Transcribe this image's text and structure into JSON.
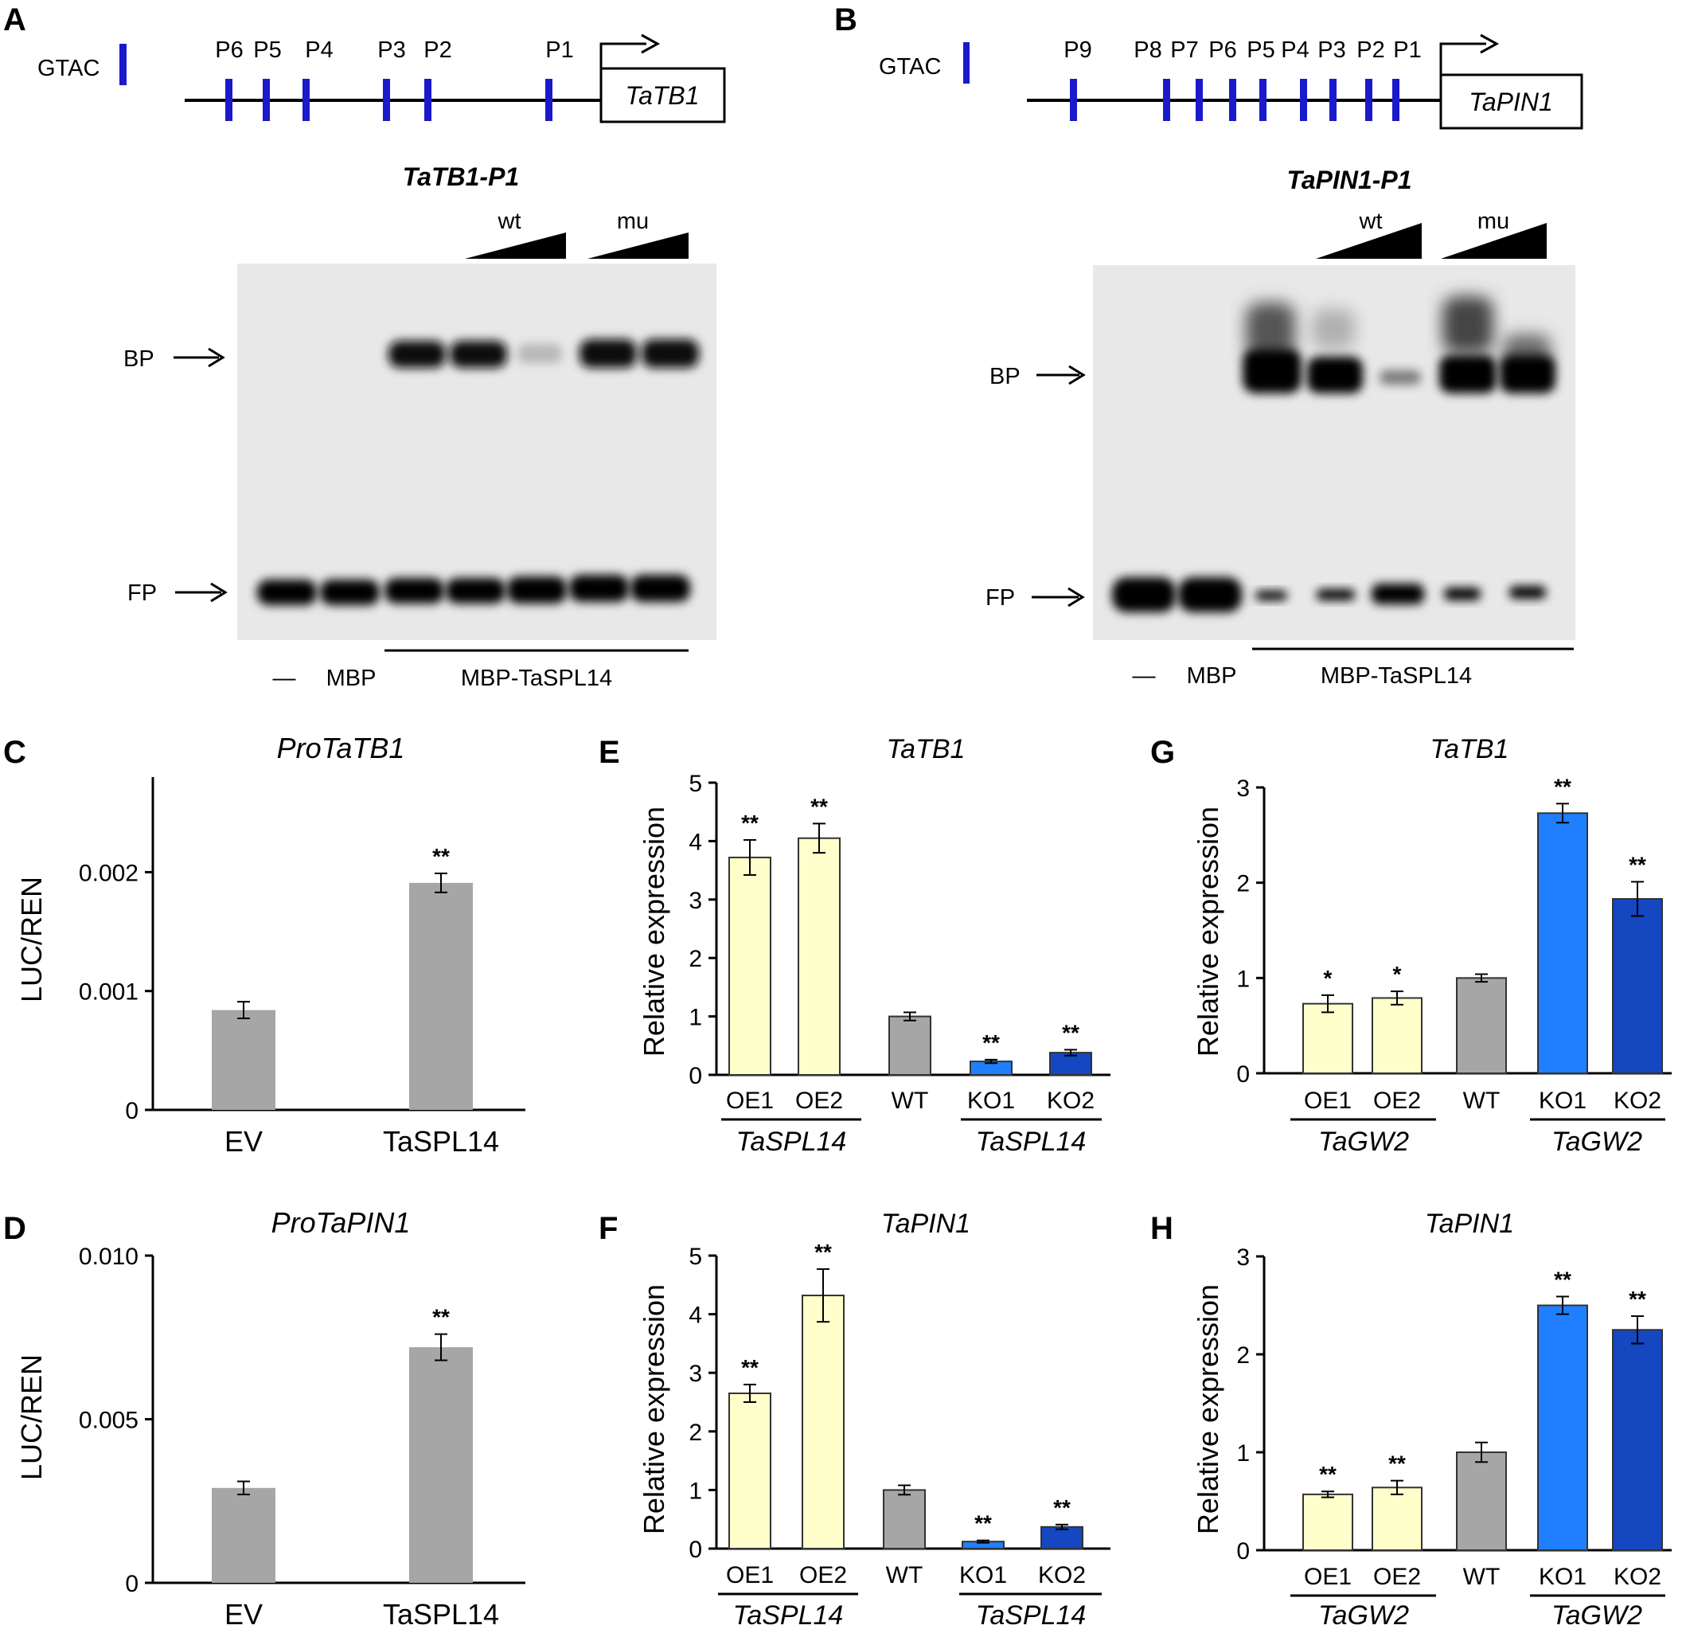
{
  "panels": {
    "A": {
      "label": "A",
      "legend_text": "GTAC",
      "gene": "TaTB1",
      "promoter_sites": [
        "P6",
        "P5",
        "P4",
        "P3",
        "P2",
        "P1"
      ],
      "gel_title": "TaTB1-P1",
      "wt": "wt",
      "mu": "mu",
      "bp": "BP",
      "fp": "FP",
      "lane_minus": "—",
      "lane_mbp": "MBP",
      "lane_protein": "MBP-TaSPL14"
    },
    "B": {
      "label": "B",
      "legend_text": "GTAC",
      "gene": "TaPIN1",
      "promoter_sites": [
        "P9",
        "P8",
        "P7",
        "P6",
        "P5",
        "P4",
        "P3",
        "P2",
        "P1"
      ],
      "gel_title": "TaPIN1-P1",
      "wt": "wt",
      "mu": "mu",
      "bp": "BP",
      "fp": "FP",
      "lane_minus": "—",
      "lane_mbp": "MBP",
      "lane_protein": "MBP-TaSPL14"
    }
  },
  "colors": {
    "site_blue": "#1a1acc",
    "grey_bar": "#a6a6a6",
    "cream_bar": "#ffffcc",
    "wt_bar": "#a6a6a6",
    "ko1_bar": "#1f7fff",
    "ko2_bar": "#1447c0",
    "gel_bg": "#e8e8e8"
  },
  "chart_data": [
    {
      "id": "C",
      "label": "C",
      "type": "bar",
      "title": "ProTaTB1",
      "ylabel": "LUC/REN",
      "categories": [
        "EV",
        "TaSPL14"
      ],
      "values": [
        0.00084,
        0.00191
      ],
      "errors": [
        7e-05,
        8e-05
      ],
      "significance": [
        "",
        "**"
      ],
      "yticks": [
        "0",
        "0.001",
        "0.002"
      ],
      "ylim": [
        0,
        0.0028
      ]
    },
    {
      "id": "D",
      "label": "D",
      "type": "bar",
      "title": "ProTaPIN1",
      "ylabel": "LUC/REN",
      "categories": [
        "EV",
        "TaSPL14"
      ],
      "values": [
        0.0029,
        0.0072
      ],
      "errors": [
        0.0002,
        0.0004
      ],
      "significance": [
        "",
        "**"
      ],
      "yticks": [
        "0",
        "0.005",
        "0.010"
      ],
      "ylim": [
        0,
        0.01
      ]
    },
    {
      "id": "E",
      "label": "E",
      "type": "bar",
      "title": "TaTB1",
      "ylabel": "Relative expression",
      "categories": [
        "OE1",
        "OE2",
        "WT",
        "KO1",
        "KO2"
      ],
      "values": [
        3.72,
        4.05,
        1.0,
        0.23,
        0.38
      ],
      "errors": [
        0.3,
        0.25,
        0.07,
        0.03,
        0.05
      ],
      "significance": [
        "**",
        "**",
        "",
        "**",
        "**"
      ],
      "groups": [
        "TaSPL14",
        "TaSPL14"
      ],
      "yticks": [
        "0",
        "1",
        "2",
        "3",
        "4",
        "5"
      ],
      "ylim": [
        0,
        5
      ]
    },
    {
      "id": "F",
      "label": "F",
      "type": "bar",
      "title": "TaPIN1",
      "ylabel": "Relative expression",
      "categories": [
        "OE1",
        "OE2",
        "WT",
        "KO1",
        "KO2"
      ],
      "values": [
        2.65,
        4.32,
        1.0,
        0.12,
        0.37
      ],
      "errors": [
        0.15,
        0.45,
        0.08,
        0.02,
        0.04
      ],
      "significance": [
        "**",
        "**",
        "",
        "**",
        "**"
      ],
      "groups": [
        "TaSPL14",
        "TaSPL14"
      ],
      "yticks": [
        "0",
        "1",
        "2",
        "3",
        "4",
        "5"
      ],
      "ylim": [
        0,
        5
      ]
    },
    {
      "id": "G",
      "label": "G",
      "type": "bar",
      "title": "TaTB1",
      "ylabel": "Relative expression",
      "categories": [
        "OE1",
        "OE2",
        "WT",
        "KO1",
        "KO2"
      ],
      "values": [
        0.73,
        0.79,
        1.0,
        2.73,
        1.83
      ],
      "errors": [
        0.09,
        0.07,
        0.04,
        0.1,
        0.18
      ],
      "significance": [
        "*",
        "*",
        "",
        "**",
        "**"
      ],
      "groups": [
        "TaGW2",
        "TaGW2"
      ],
      "yticks": [
        "0",
        "1",
        "2",
        "3"
      ],
      "ylim": [
        0,
        3
      ]
    },
    {
      "id": "H",
      "label": "H",
      "type": "bar",
      "title": "TaPIN1",
      "ylabel": "Relative expression",
      "categories": [
        "OE1",
        "OE2",
        "WT",
        "KO1",
        "KO2"
      ],
      "values": [
        0.57,
        0.64,
        1.0,
        2.5,
        2.25
      ],
      "errors": [
        0.03,
        0.07,
        0.1,
        0.09,
        0.14
      ],
      "significance": [
        "**",
        "**",
        "",
        "**",
        "**"
      ],
      "groups": [
        "TaGW2",
        "TaGW2"
      ],
      "yticks": [
        "0",
        "1",
        "2",
        "3"
      ],
      "ylim": [
        0,
        3
      ]
    }
  ]
}
